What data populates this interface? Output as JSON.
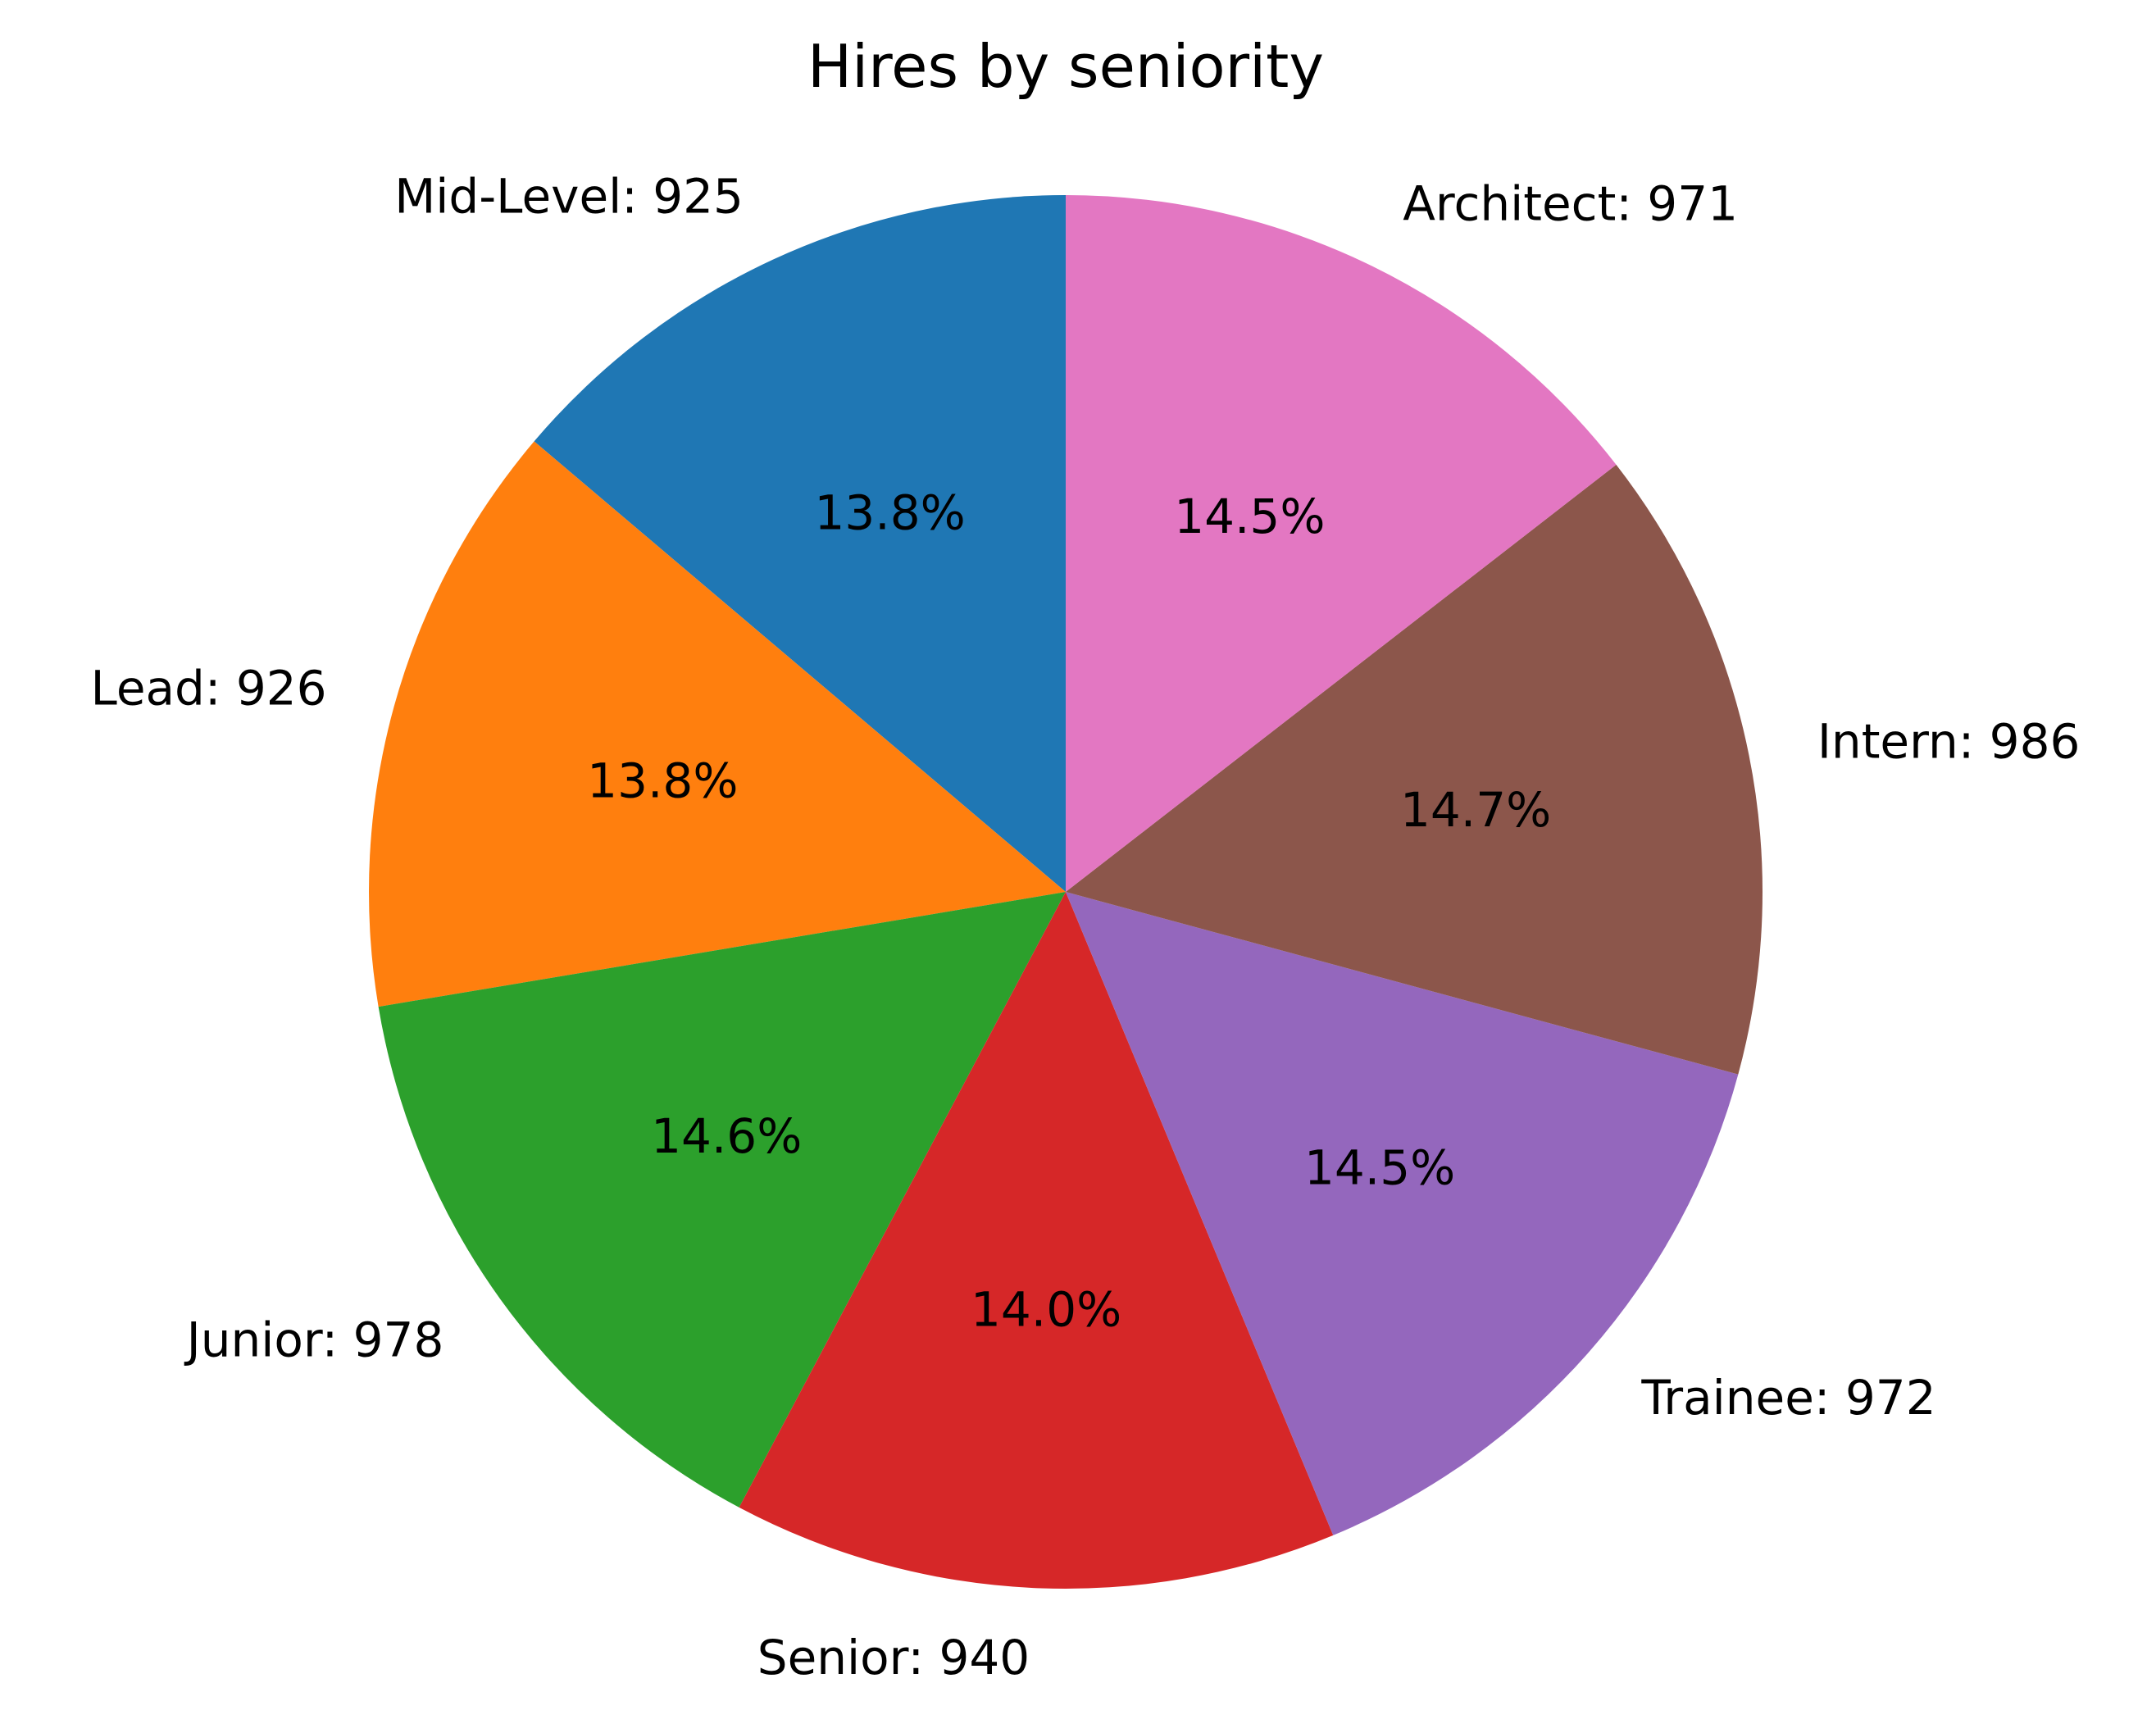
{
  "chart_data": {
    "type": "pie",
    "title": "Hires by seniority",
    "start_angle_deg": 90,
    "direction": "counterclockwise",
    "slices": [
      {
        "label": "Mid-Level",
        "value": 925,
        "display": "Mid-Level: 925",
        "pct_label": "13.8%",
        "color": "#1f77b4"
      },
      {
        "label": "Lead",
        "value": 926,
        "display": "Lead: 926",
        "pct_label": "13.8%",
        "color": "#ff7f0e"
      },
      {
        "label": "Junior",
        "value": 978,
        "display": "Junior: 978",
        "pct_label": "14.6%",
        "color": "#2ca02c"
      },
      {
        "label": "Senior",
        "value": 940,
        "display": "Senior: 940",
        "pct_label": "14.0%",
        "color": "#d62728"
      },
      {
        "label": "Trainee",
        "value": 972,
        "display": "Trainee: 972",
        "pct_label": "14.5%",
        "color": "#9467bd"
      },
      {
        "label": "Intern",
        "value": 986,
        "display": "Intern: 986",
        "pct_label": "14.7%",
        "color": "#8c564b"
      },
      {
        "label": "Architect",
        "value": 971,
        "display": "Architect: 971",
        "pct_label": "14.5%",
        "color": "#e377c2"
      }
    ]
  }
}
